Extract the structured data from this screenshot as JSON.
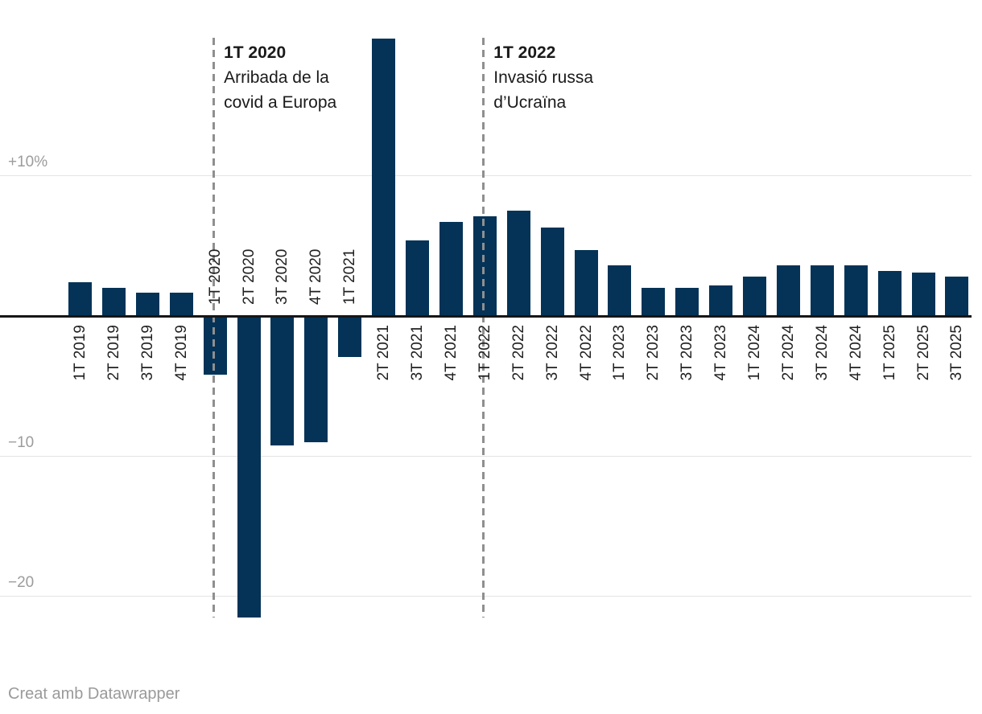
{
  "chart_data": {
    "type": "bar",
    "categories": [
      "1T 2019",
      "2T 2019",
      "3T 2019",
      "4T 2019",
      "1T 2020",
      "2T 2020",
      "3T 2020",
      "4T 2020",
      "1T 2021",
      "2T 2021",
      "3T 2021",
      "4T 2021",
      "1T 2022",
      "2T 2022",
      "3T 2022",
      "4T 2022",
      "1T 2023",
      "2T 2023",
      "3T 2023",
      "4T 2023",
      "1T 2024",
      "2T 2024",
      "3T 2024",
      "4T 2024",
      "1T 2025",
      "2T 2025",
      "3T 2025"
    ],
    "values": [
      2.4,
      2.0,
      1.7,
      1.7,
      -4.2,
      -21.5,
      -9.2,
      -9.0,
      -2.9,
      19.8,
      5.4,
      6.7,
      7.1,
      7.5,
      6.3,
      4.7,
      3.6,
      2.0,
      2.0,
      2.2,
      2.8,
      3.6,
      3.6,
      3.6,
      3.2,
      3.1,
      2.8
    ],
    "title": "",
    "xlabel": "",
    "ylabel": "",
    "ylim": [
      -21.5,
      19.8
    ],
    "grid": "horizontal",
    "gridlines": [
      {
        "value": 10,
        "label": "+10%"
      },
      {
        "value": -10,
        "label": "−10"
      },
      {
        "value": -20,
        "label": "−20"
      }
    ],
    "bar_color": "#043357",
    "annotations": [
      {
        "x_category": "1T 2020",
        "title": "1T 2020",
        "lines": [
          "Arribada de la",
          "covid a Europa"
        ]
      },
      {
        "x_category": "1T 2022",
        "title": "1T 2022",
        "lines": [
          "Invasió russa",
          "d’Ucraïna"
        ]
      }
    ],
    "footer": "Creat amb Datawrapper"
  }
}
